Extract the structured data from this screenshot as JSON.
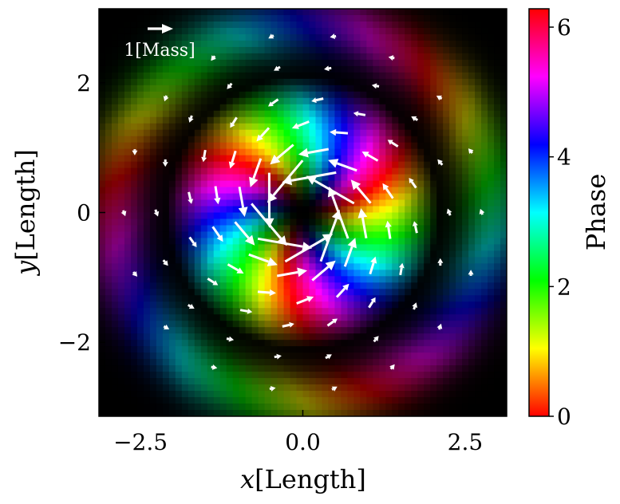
{
  "chart_data": {
    "type": "heatmap",
    "subtype": "phase-amplitude field with current vector overlay",
    "xlabel_var": "x",
    "xlabel_unit": "[Length]",
    "ylabel_var": "y",
    "ylabel_unit": "[Length]",
    "xlim": [
      -3.14,
      3.14
    ],
    "ylim": [
      -3.14,
      3.14
    ],
    "x_ticks": [
      -2.5,
      0.0,
      2.5
    ],
    "x_tick_labels": [
      "−2.5",
      "0.0",
      "2.5"
    ],
    "y_ticks": [
      -2,
      0,
      2
    ],
    "y_tick_labels": [
      "−2",
      "0",
      "2"
    ],
    "colorbar": {
      "label": "Phase",
      "range": [
        0,
        6.283
      ],
      "ticks": [
        0,
        2,
        4,
        6
      ],
      "tick_labels": [
        "0",
        "2",
        "4",
        "6"
      ],
      "colormap": "hsv"
    },
    "field": {
      "grid": 64,
      "vortex_winding": -3,
      "amplitude_peak_radius": 1.25,
      "outer_ring_radius": 2.9,
      "dark_ring_radius": 2.1
    },
    "quiver": {
      "reference_label": "1[Mass]",
      "reference_magnitude": 1,
      "rings": [
        {
          "radius": 0.55,
          "count": 9,
          "magnitude": 0.9
        },
        {
          "radius": 0.95,
          "count": 12,
          "magnitude": 0.5
        },
        {
          "radius": 1.35,
          "count": 14,
          "magnitude": 0.3
        },
        {
          "radius": 1.75,
          "count": 16,
          "magnitude": 0.2
        },
        {
          "radius": 2.25,
          "count": 18,
          "magnitude": 0.12
        },
        {
          "radius": 2.75,
          "count": 18,
          "magnitude": 0.1
        }
      ]
    }
  }
}
